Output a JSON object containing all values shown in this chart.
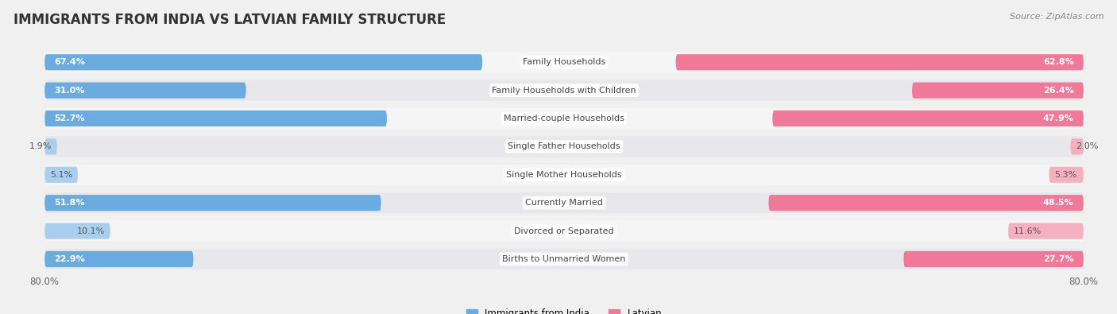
{
  "title": "IMMIGRANTS FROM INDIA VS LATVIAN FAMILY STRUCTURE",
  "source": "Source: ZipAtlas.com",
  "categories": [
    "Family Households",
    "Family Households with Children",
    "Married-couple Households",
    "Single Father Households",
    "Single Mother Households",
    "Currently Married",
    "Divorced or Separated",
    "Births to Unmarried Women"
  ],
  "india_values": [
    67.4,
    31.0,
    52.7,
    1.9,
    5.1,
    51.8,
    10.1,
    22.9
  ],
  "latvian_values": [
    62.8,
    26.4,
    47.9,
    2.0,
    5.3,
    48.5,
    11.6,
    27.7
  ],
  "india_color": "#6aabe0",
  "india_color_light": "#aacfee",
  "latvian_color": "#f07898",
  "latvian_color_light": "#f5b0c0",
  "india_label": "Immigrants from India",
  "latvian_label": "Latvian",
  "x_max": 80.0,
  "background_color": "#f0f0f0",
  "row_bg_light": "#f5f5f5",
  "row_bg_dark": "#e8e8ec",
  "title_fontsize": 12,
  "source_fontsize": 8,
  "axis_label_fontsize": 8.5,
  "bar_label_fontsize": 8,
  "category_fontsize": 8,
  "label_threshold": 15
}
